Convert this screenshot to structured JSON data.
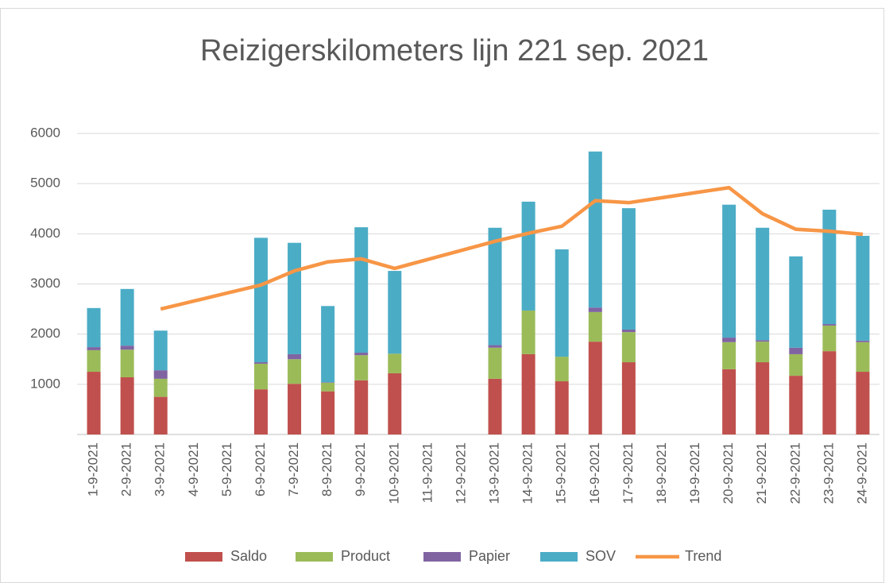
{
  "chart_data": {
    "type": "bar",
    "stacked": true,
    "title": "Reizigerskilometers lijn 221 sep. 2021",
    "categories": [
      "1-9-2021",
      "2-9-2021",
      "3-9-2021",
      "4-9-2021",
      "5-9-2021",
      "6-9-2021",
      "7-9-2021",
      "8-9-2021",
      "9-9-2021",
      "10-9-2021",
      "11-9-2021",
      "12-9-2021",
      "13-9-2021",
      "14-9-2021",
      "15-9-2021",
      "16-9-2021",
      "17-9-2021",
      "18-9-2021",
      "19-9-2021",
      "20-9-2021",
      "21-9-2021",
      "22-9-2021",
      "23-9-2021",
      "24-9-2021"
    ],
    "series": [
      {
        "name": "Saldo",
        "color": "#c0504d",
        "values": [
          1250,
          1140,
          750,
          null,
          null,
          900,
          1010,
          860,
          1080,
          1220,
          null,
          null,
          1110,
          1600,
          1060,
          1850,
          1440,
          null,
          null,
          1300,
          1440,
          1170,
          1660,
          1250
        ]
      },
      {
        "name": "Product",
        "color": "#9bbb59",
        "values": [
          430,
          550,
          360,
          null,
          null,
          510,
          490,
          170,
          500,
          390,
          null,
          null,
          620,
          870,
          490,
          590,
          600,
          null,
          null,
          540,
          410,
          430,
          510,
          590
        ]
      },
      {
        "name": "Papier",
        "color": "#8064a2",
        "values": [
          60,
          80,
          170,
          null,
          null,
          30,
          100,
          10,
          50,
          0,
          null,
          null,
          50,
          0,
          0,
          90,
          50,
          null,
          null,
          90,
          30,
          130,
          30,
          30
        ]
      },
      {
        "name": "SOV",
        "color": "#4bacc6",
        "values": [
          780,
          1130,
          790,
          null,
          null,
          2480,
          2220,
          1520,
          2500,
          1650,
          null,
          null,
          2340,
          2170,
          2140,
          3110,
          2420,
          null,
          null,
          2650,
          2240,
          1820,
          2280,
          2090
        ]
      },
      {
        "name": "Trend",
        "color": "#f79646",
        "type": "line",
        "values": [
          null,
          null,
          2500,
          2660,
          2820,
          2980,
          3260,
          3440,
          3500,
          3310,
          3490,
          3670,
          3850,
          4010,
          4150,
          4660,
          4620,
          4720,
          4820,
          4920,
          4400,
          4090,
          4050,
          3990
        ]
      }
    ],
    "ylim": [
      0,
      6000
    ],
    "yticks": [
      1000,
      2000,
      3000,
      4000,
      5000,
      6000
    ],
    "grid": true,
    "legend": "bottom"
  }
}
